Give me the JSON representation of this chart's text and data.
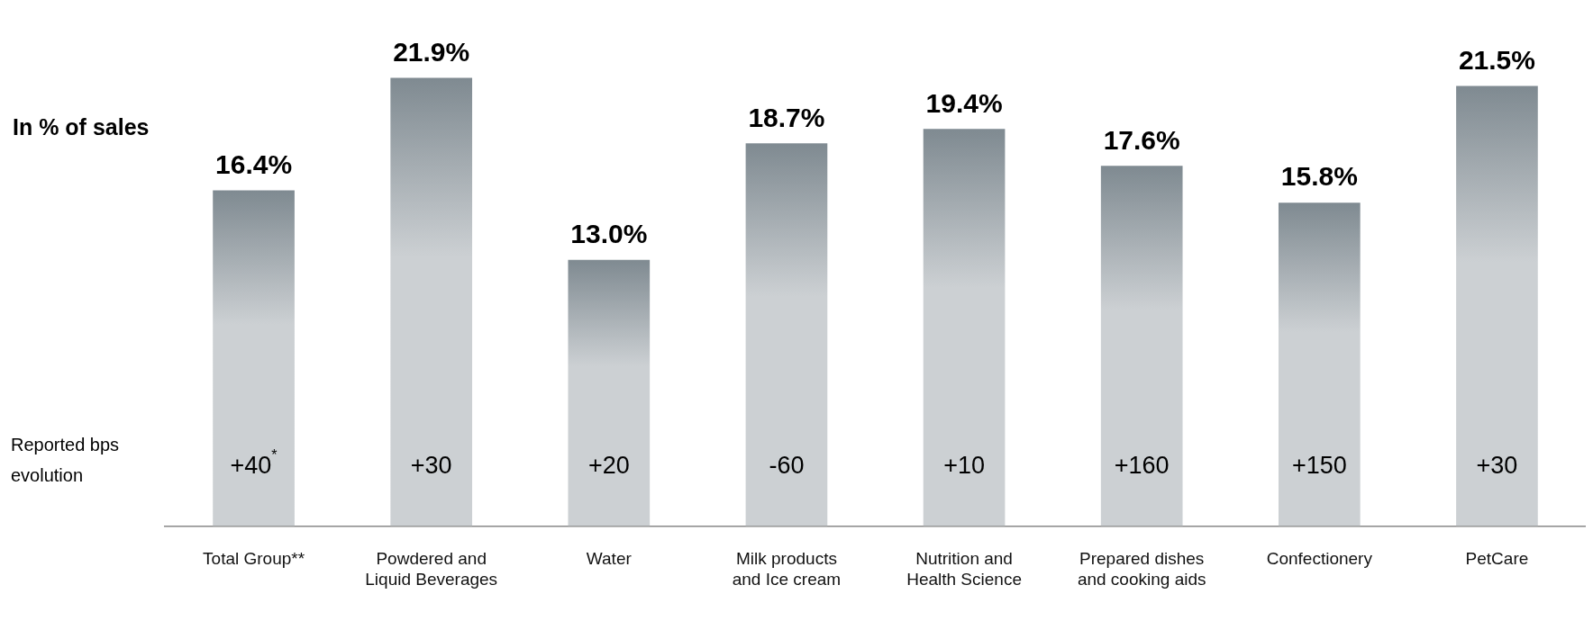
{
  "chart_data": {
    "type": "bar",
    "ylabel": "In % of sales",
    "categories": [
      "Total Group**",
      "Powdered and Liquid Beverages",
      "Water",
      "Milk products and Ice cream",
      "Nutrition and Health Science",
      "Prepared dishes and cooking aids",
      "Confectionery",
      "PetCare"
    ],
    "values": [
      16.4,
      21.9,
      13.0,
      18.7,
      19.4,
      17.6,
      15.8,
      21.5
    ],
    "value_labels": [
      "16.4%",
      "21.9%",
      "13.0%",
      "18.7%",
      "19.4%",
      "17.6%",
      "15.8%",
      "21.5%"
    ],
    "color": "#7f8a91",
    "tick_labels": "x",
    "grid": false,
    "legend": false,
    "annotations": [
      "Reported bps evolution",
      "+40$^{*}$",
      "+30",
      "+20",
      "-60",
      "+10",
      "+160",
      "+150",
      "+30"
    ]
  }
}
